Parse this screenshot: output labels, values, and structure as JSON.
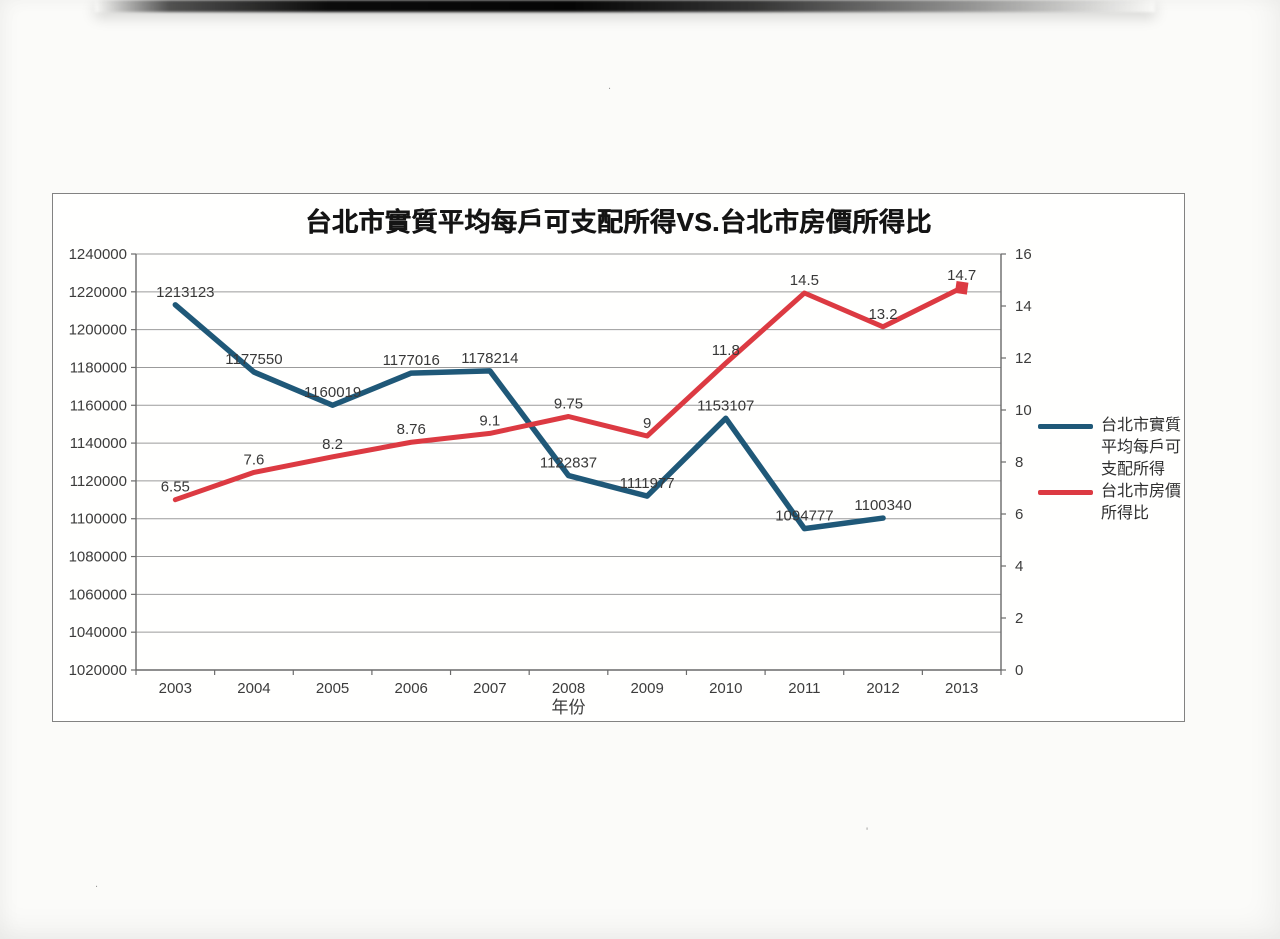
{
  "page": {
    "background": "#fbfbf9",
    "kind": "scanned paper with embedded chart"
  },
  "chart_data": {
    "type": "line",
    "title": "台北市實質平均每戶可支配所得VS.台北市房價所得比",
    "xlabel": "年份",
    "categories": [
      "2003",
      "2004",
      "2005",
      "2006",
      "2007",
      "2008",
      "2009",
      "2010",
      "2011",
      "2012",
      "2013"
    ],
    "series": [
      {
        "name": "台北市實質平均每戶可支配所得",
        "axis": "left",
        "color": "#1f5878",
        "values": [
          1213123,
          1177550,
          1160019,
          1177016,
          1178214,
          1122837,
          1111977,
          1153107,
          1094777,
          1100340,
          null
        ],
        "labels": [
          "1213123",
          "1177550",
          "1160019",
          "1177016",
          "1178214",
          "1122837",
          "1111977",
          "1153107",
          "1094777",
          "1100340",
          ""
        ]
      },
      {
        "name": "台北市房價所得比",
        "axis": "right",
        "color": "#dc3a42",
        "values": [
          6.55,
          7.6,
          8.2,
          8.76,
          9.1,
          9.75,
          9,
          11.8,
          14.5,
          13.2,
          14.7
        ],
        "labels": [
          "6.55",
          "7.6",
          "8.2",
          "8.76",
          "9.1",
          "9.75",
          "9",
          "11.8",
          "14.5",
          "13.2",
          "14.7"
        ],
        "end_marker": "square"
      }
    ],
    "left_axis": {
      "min": 1020000,
      "max": 1240000,
      "step": 20000,
      "tick_labels": [
        "1240000",
        "1220000",
        "1200000",
        "1180000",
        "1160000",
        "1140000",
        "1120000",
        "1100000",
        "1080000",
        "1060000",
        "1040000",
        "1020000"
      ]
    },
    "right_axis": {
      "min": 0,
      "max": 16,
      "step": 2,
      "tick_labels": [
        "16",
        "14",
        "12",
        "10",
        "8",
        "6",
        "4",
        "2",
        "0"
      ]
    },
    "grid": true,
    "legend_position": "right",
    "grid_color": "#9b9b9b",
    "axis_color": "#6a6a6a",
    "tick_text_color": "#3c3c3c",
    "data_label_color": "#383838"
  },
  "specks": {
    "a": "'",
    "b": ".",
    "c": "."
  }
}
